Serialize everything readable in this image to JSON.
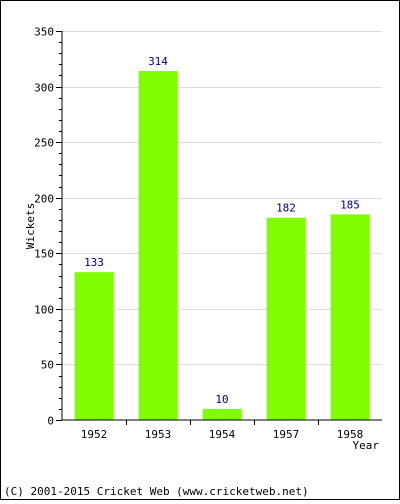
{
  "chart_data": {
    "type": "bar",
    "title": "",
    "xlabel": "Year",
    "ylabel": "Wickets",
    "categories": [
      "1952",
      "1953",
      "1954",
      "1957",
      "1958"
    ],
    "values": [
      133,
      314,
      10,
      182,
      185
    ],
    "ylim": [
      0,
      350
    ],
    "yticks": [
      0,
      50,
      100,
      150,
      200,
      250,
      300,
      350
    ],
    "grid": true,
    "legend": "none",
    "bar_color": "#80ff00",
    "data_label_color": "#000080"
  },
  "footer": {
    "copyright": "(C) 2001-2015 Cricket Web (www.cricketweb.net)"
  }
}
